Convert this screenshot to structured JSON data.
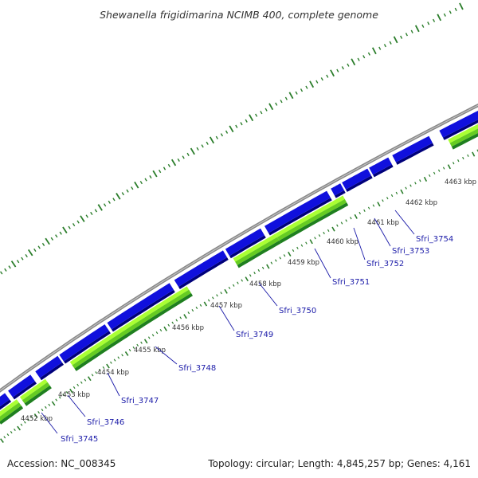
{
  "title": "Shewanella frigidimarina NCIMB 400, complete genome",
  "footer": {
    "accession": "Accession: NC_008345",
    "summary": "Topology: circular; Length: 4,845,257 bp; Genes: 4,161"
  },
  "colors": {
    "backbone": "#888888",
    "gene_top": "#1010dd",
    "gene_shadow": "#00007a",
    "cds_light": "#aaff33",
    "cds_mid": "#66cc22",
    "cds_dark": "#1f7f1f",
    "outer_tick": "#2a7d2a",
    "inner_tick": "#2a7d2a",
    "kbp_text": "#333333",
    "gene_label": "#1a1aa8"
  },
  "kbp_labels": [
    "4452 kbp",
    "4453 kbp",
    "4454 kbp",
    "4455 kbp",
    "4456 kbp",
    "4457 kbp",
    "4458 kbp",
    "4459 kbp",
    "4460 kbp",
    "4461 kbp",
    "4462 kbp",
    "4463 kbp"
  ],
  "gene_labels": [
    "Sfri_3745",
    "Sfri_3746",
    "Sfri_3747",
    "Sfri_3748",
    "Sfri_3749",
    "Sfri_3750",
    "Sfri_3751",
    "Sfri_3752",
    "Sfri_3753",
    "Sfri_3754"
  ]
}
